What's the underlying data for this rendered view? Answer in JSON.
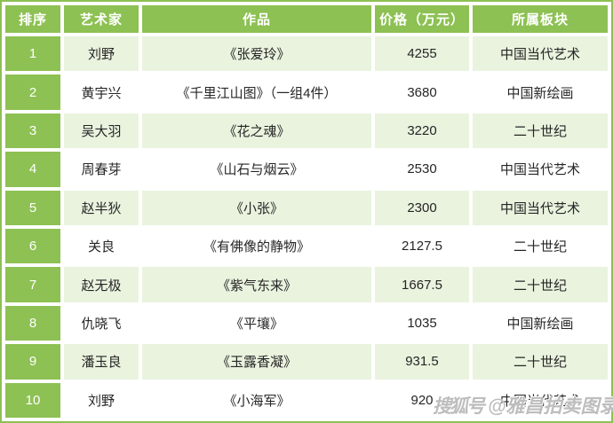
{
  "table": {
    "headers": [
      "排序",
      "艺术家",
      "作品",
      "价格（万元）",
      "所属板块"
    ],
    "rows": [
      {
        "rank": "1",
        "artist": "刘野",
        "work": "《张爱玲》",
        "price": "4255",
        "sector": "中国当代艺术"
      },
      {
        "rank": "2",
        "artist": "黄宇兴",
        "work": "《千里江山图》（一组4件）",
        "price": "3680",
        "sector": "中国新绘画"
      },
      {
        "rank": "3",
        "artist": "吴大羽",
        "work": "《花之魂》",
        "price": "3220",
        "sector": "二十世纪"
      },
      {
        "rank": "4",
        "artist": "周春芽",
        "work": "《山石与烟云》",
        "price": "2530",
        "sector": "中国当代艺术"
      },
      {
        "rank": "5",
        "artist": "赵半狄",
        "work": "《小张》",
        "price": "2300",
        "sector": "中国当代艺术"
      },
      {
        "rank": "6",
        "artist": "关良",
        "work": "《有佛像的静物》",
        "price": "2127.5",
        "sector": "二十世纪"
      },
      {
        "rank": "7",
        "artist": "赵无极",
        "work": "《紫气东来》",
        "price": "1667.5",
        "sector": "二十世纪"
      },
      {
        "rank": "8",
        "artist": "仇晓飞",
        "work": "《平壤》",
        "price": "1035",
        "sector": "中国新绘画"
      },
      {
        "rank": "9",
        "artist": "潘玉良",
        "work": "《玉露香凝》",
        "price": "931.5",
        "sector": "二十世纪"
      },
      {
        "rank": "10",
        "artist": "刘野",
        "work": "《小海军》",
        "price": "920",
        "sector": "中国当代艺术"
      }
    ]
  },
  "watermark": {
    "logo": "搜狐号",
    "handle": "@雅昌拍卖图录"
  },
  "colors": {
    "header_green": "#8dc153",
    "row_tint_green": "#e9f3de",
    "header_text": "#ffffff",
    "body_text": "#262626",
    "watermark_gray": "#afafaf"
  }
}
